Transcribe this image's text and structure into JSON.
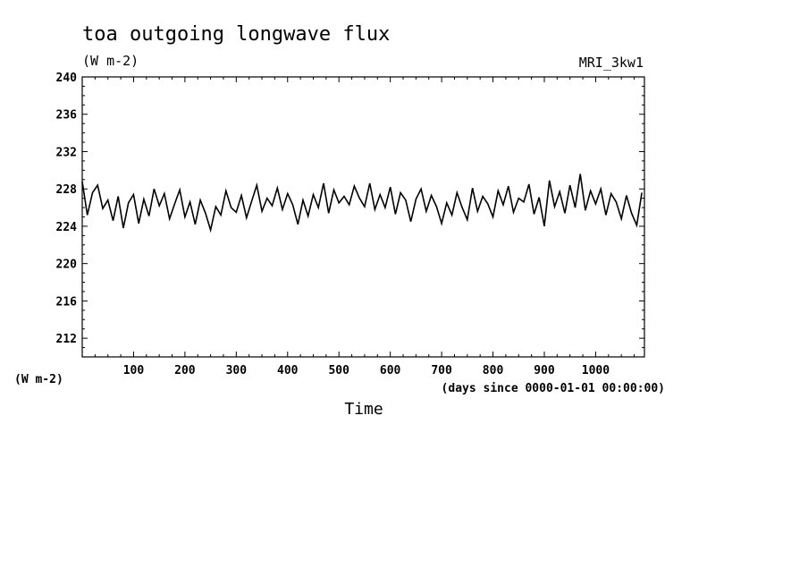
{
  "chart_data": {
    "type": "line",
    "title": "toa outgoing longwave flux",
    "units": "(W m-2)",
    "model": "MRI_3kw1",
    "ylabel": "(W m-2)",
    "xlabel": "Time",
    "x_units": "(days since 0000-01-01 00:00:00)",
    "xlim": [
      0,
      1095
    ],
    "ylim": [
      210,
      240
    ],
    "y_ticks": [
      212,
      216,
      220,
      224,
      228,
      232,
      236,
      240
    ],
    "x_ticks": [
      100,
      200,
      300,
      400,
      500,
      600,
      700,
      800,
      900,
      1000
    ],
    "grid": false,
    "line_color": "#000000",
    "series": [
      {
        "x": [
          0,
          10,
          20,
          30,
          40,
          50,
          60,
          70,
          80,
          90,
          100,
          110,
          120,
          130,
          140,
          150,
          160,
          170,
          180,
          190,
          200,
          210,
          220,
          230,
          240,
          250,
          260,
          270,
          280,
          290,
          300,
          310,
          320,
          330,
          340,
          350,
          360,
          370,
          380,
          390,
          400,
          410,
          420,
          430,
          440,
          450,
          460,
          470,
          480,
          490,
          500,
          510,
          520,
          530,
          540,
          550,
          560,
          570,
          580,
          590,
          600,
          610,
          620,
          630,
          640,
          650,
          660,
          670,
          680,
          690,
          700,
          710,
          720,
          730,
          740,
          750,
          760,
          770,
          780,
          790,
          800,
          810,
          820,
          830,
          840,
          850,
          860,
          870,
          880,
          890,
          900,
          910,
          920,
          930,
          940,
          950,
          960,
          970,
          980,
          990,
          1000,
          1010,
          1020,
          1030,
          1040,
          1050,
          1060,
          1070,
          1080,
          1090
        ],
        "values": [
          228.8,
          225.2,
          227.6,
          228.4,
          225.9,
          226.8,
          224.6,
          227.2,
          223.8,
          226.5,
          227.4,
          224.3,
          226.9,
          225.1,
          228.0,
          226.2,
          227.5,
          224.8,
          226.4,
          227.9,
          225.0,
          226.6,
          224.2,
          226.8,
          225.4,
          223.6,
          226.1,
          225.2,
          227.8,
          226.0,
          225.5,
          227.3,
          224.9,
          226.7,
          228.4,
          225.6,
          227.0,
          226.2,
          228.1,
          225.8,
          227.5,
          226.3,
          224.2,
          226.8,
          225.1,
          227.4,
          226.0,
          228.6,
          225.4,
          227.9,
          226.5,
          227.2,
          226.3,
          228.3,
          227.0,
          226.1,
          228.6,
          225.8,
          227.4,
          226.0,
          228.2,
          225.3,
          227.6,
          226.8,
          224.5,
          226.9,
          228.0,
          225.6,
          227.3,
          226.1,
          224.3,
          226.5,
          225.2,
          227.6,
          226.0,
          224.7,
          228.1,
          225.6,
          227.2,
          226.4,
          225.0,
          227.8,
          226.3,
          228.3,
          225.5,
          227.0,
          226.6,
          228.5,
          225.3,
          227.1,
          224.0,
          228.9,
          226.1,
          227.7,
          225.4,
          228.4,
          226.0,
          229.6,
          225.7,
          227.8,
          226.4,
          228.0,
          225.2,
          227.5,
          226.6,
          224.8,
          227.3,
          225.4,
          224.1,
          227.6
        ]
      }
    ]
  }
}
